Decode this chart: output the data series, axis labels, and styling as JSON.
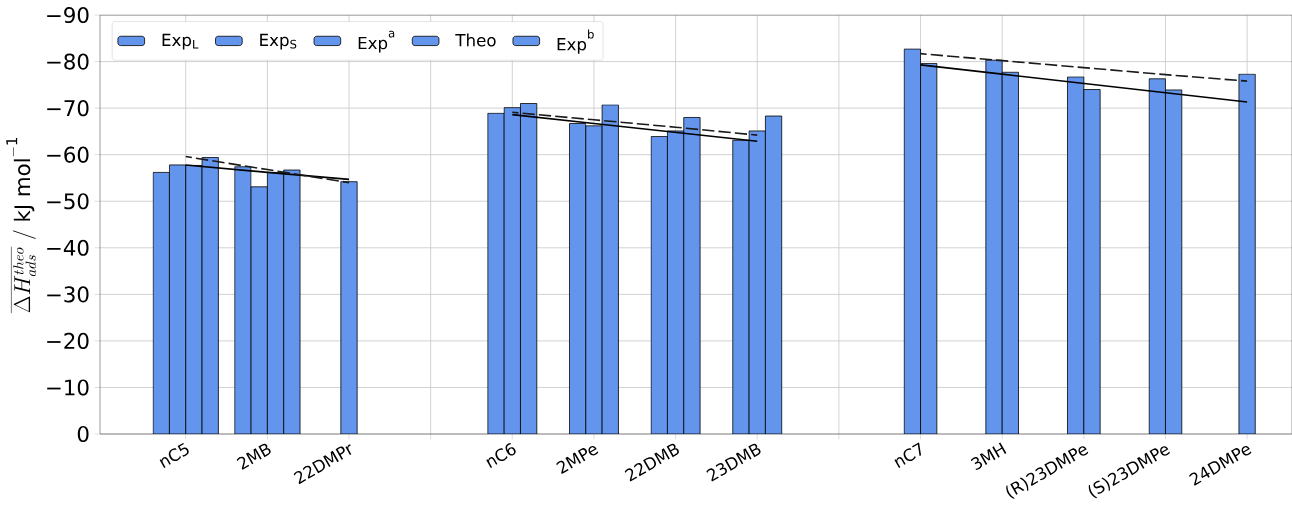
{
  "chart_data": {
    "type": "bar",
    "ylabel": "\\overline{\\Delta H^{theo}_{ads}}\\ /\\ \\mathrm{kJ\\ mol^{-1}}",
    "categories": [
      "nC5",
      "2MB",
      "22DMPr",
      null,
      "nC6",
      "2MPe",
      "22DMB",
      "23DMB",
      null,
      "nC7",
      "3MH",
      "(R)23DMPe",
      "(S)23DMPe",
      "24DMPe"
    ],
    "ylim": [
      0,
      -90
    ],
    "yticks": [
      {
        "value": 0,
        "label": "0"
      },
      {
        "value": -10,
        "label": "−10"
      },
      {
        "value": -20,
        "label": "−20"
      },
      {
        "value": -30,
        "label": "−30"
      },
      {
        "value": -40,
        "label": "−40"
      },
      {
        "value": -50,
        "label": "−50"
      },
      {
        "value": -60,
        "label": "−60"
      },
      {
        "value": -70,
        "label": "−70"
      },
      {
        "value": -80,
        "label": "−80"
      },
      {
        "value": -90,
        "label": "−90"
      }
    ],
    "grid": true,
    "legend": "top left",
    "series": [
      {
        "name": "Exp$_{L}$",
        "color": "#6495ed",
        "values": [
          -56.2,
          -57.4,
          null,
          null,
          null,
          null,
          null,
          null,
          null,
          null,
          null,
          null,
          null,
          null
        ]
      },
      {
        "name": "Exp$_{S}$",
        "color": "#6495ed",
        "values": [
          -57.8,
          -53.1,
          null,
          null,
          -68.9,
          -66.7,
          -63.9,
          -63.1,
          null,
          null,
          null,
          null,
          null,
          null
        ]
      },
      {
        "name": "Exp$^{a}$",
        "color": "#6495ed",
        "values": [
          -57.7,
          -56.2,
          null,
          null,
          null,
          null,
          null,
          null,
          null,
          null,
          null,
          null,
          null,
          null
        ]
      },
      {
        "name": "Theo",
        "color": "#6495ed",
        "values": [
          -59.4,
          -56.7,
          -54.2,
          null,
          -70.1,
          -66.2,
          -65.1,
          -65.1,
          null,
          -82.7,
          -80.3,
          -76.7,
          -76.3,
          -77.3
        ]
      },
      {
        "name": "Exp$^{b}$",
        "color": "#6495ed",
        "values": [
          null,
          null,
          null,
          null,
          -71.0,
          -70.7,
          -68.0,
          -68.3,
          null,
          -79.6,
          -77.7,
          -74.0,
          -73.9,
          null
        ]
      },
      {
        "type": "line",
        "color": "#000000",
        "line_style": "solid",
        "values": [
          -57.8,
          -56.2,
          -54.7,
          null,
          null,
          null,
          null,
          null,
          null,
          null,
          null,
          null,
          null,
          null
        ]
      },
      {
        "type": "line",
        "color": "#1a1a1a",
        "line_style": "dashed",
        "values": [
          -59.6,
          -56.8,
          -54.0,
          null,
          null,
          null,
          null,
          null,
          null,
          null,
          null,
          null,
          null,
          null
        ]
      },
      {
        "type": "line",
        "color": "#000000",
        "line_style": "solid",
        "values": [
          null,
          null,
          null,
          null,
          -68.6,
          -66.7,
          -64.8,
          -62.9,
          null,
          null,
          null,
          null,
          null,
          null
        ]
      },
      {
        "type": "line",
        "color": "#1a1a1a",
        "line_style": "dashed",
        "values": [
          null,
          null,
          null,
          null,
          -69.1,
          -67.5,
          -65.9,
          -64.2,
          null,
          null,
          null,
          null,
          null,
          null
        ]
      },
      {
        "type": "line",
        "color": "#000000",
        "line_style": "solid",
        "values": [
          null,
          null,
          null,
          null,
          null,
          null,
          null,
          null,
          null,
          -79.3,
          -77.3,
          -75.3,
          -73.3,
          -71.3
        ]
      },
      {
        "type": "line",
        "color": "#1a1a1a",
        "line_style": "dashed",
        "values": [
          null,
          null,
          null,
          null,
          null,
          null,
          null,
          null,
          null,
          -81.7,
          -80.2,
          -78.7,
          -77.2,
          -75.8
        ]
      }
    ]
  }
}
